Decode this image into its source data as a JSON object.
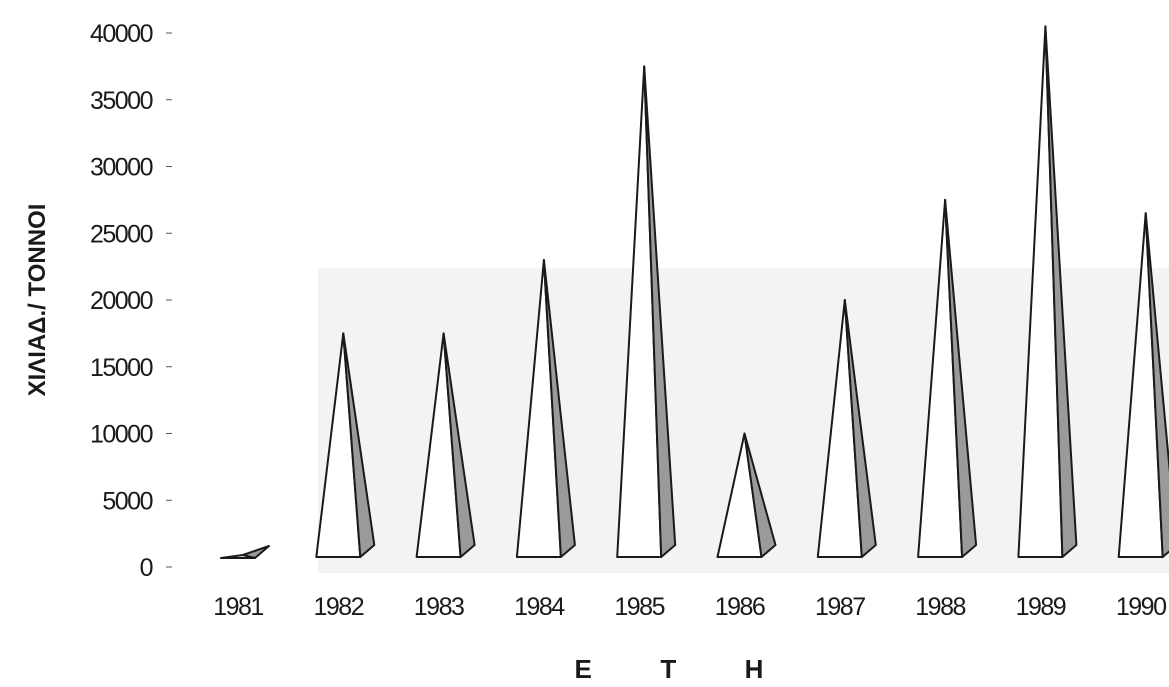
{
  "chart_data": {
    "type": "bar",
    "bar_shape": "pyramid",
    "title": "",
    "xlabel": "Ε  Τ  Η",
    "ylabel": "ΧΙΛΙΑΔ./ ΤΟΝΝΟΙ",
    "categories": [
      "1981",
      "1982",
      "1983",
      "1984",
      "1985",
      "1986",
      "1987",
      "1988",
      "1989",
      "1990"
    ],
    "values": [
      1800,
      17500,
      17500,
      23000,
      37500,
      10000,
      20000,
      27500,
      40500,
      26500
    ],
    "ylim": [
      0,
      40000
    ],
    "yticks": [
      "0",
      "5000",
      "10000",
      "15000",
      "20000",
      "25000",
      "30000",
      "35000",
      "40000"
    ],
    "grid": false,
    "legend": "none",
    "colors": {
      "face_light": "#ffffff",
      "face_dark": "#9a9a9a",
      "stroke": "#1a1a1a",
      "floor": "#f1f1f1"
    }
  }
}
